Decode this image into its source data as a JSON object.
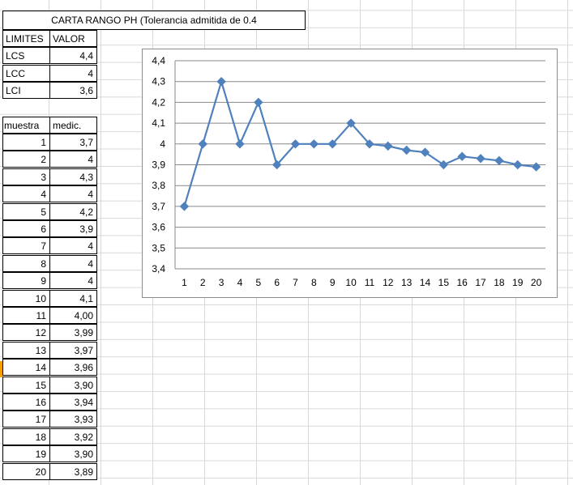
{
  "sheet": {
    "title": "CARTA RANGO PH (Tolerancia admitida de 0.4",
    "limits_header": [
      "LIMITES",
      "VALOR"
    ],
    "limits": [
      {
        "label": "LCS",
        "value": "4,4"
      },
      {
        "label": "LCC",
        "value": "4"
      },
      {
        "label": "LCI",
        "value": "3,6"
      }
    ],
    "data_header": [
      "muestra",
      "medic."
    ],
    "rows": [
      {
        "n": "1",
        "v": "3,7"
      },
      {
        "n": "2",
        "v": "4"
      },
      {
        "n": "3",
        "v": "4,3"
      },
      {
        "n": "4",
        "v": "4"
      },
      {
        "n": "5",
        "v": "4,2"
      },
      {
        "n": "6",
        "v": "3,9"
      },
      {
        "n": "7",
        "v": "4"
      },
      {
        "n": "8",
        "v": "4"
      },
      {
        "n": "9",
        "v": "4"
      },
      {
        "n": "10",
        "v": "4,1"
      },
      {
        "n": "11",
        "v": "4,00"
      },
      {
        "n": "12",
        "v": "3,99"
      },
      {
        "n": "13",
        "v": "3,97"
      },
      {
        "n": "14",
        "v": "3,96"
      },
      {
        "n": "15",
        "v": "3,90"
      },
      {
        "n": "16",
        "v": "3,94"
      },
      {
        "n": "17",
        "v": "3,93"
      },
      {
        "n": "18",
        "v": "3,92"
      },
      {
        "n": "19",
        "v": "3,90"
      },
      {
        "n": "20",
        "v": "3,89"
      }
    ]
  },
  "chart_data": {
    "type": "line",
    "x": [
      1,
      2,
      3,
      4,
      5,
      6,
      7,
      8,
      9,
      10,
      11,
      12,
      13,
      14,
      15,
      16,
      17,
      18,
      19,
      20
    ],
    "series": [
      {
        "values": [
          3.7,
          4,
          4.3,
          4,
          4.2,
          3.9,
          4,
          4,
          4,
          4.1,
          4.0,
          3.99,
          3.97,
          3.96,
          3.9,
          3.94,
          3.93,
          3.92,
          3.9,
          3.89
        ]
      }
    ],
    "ylim": [
      3.4,
      4.4
    ],
    "yticks": [
      "3,4",
      "3,5",
      "3,6",
      "3,7",
      "3,8",
      "3,9",
      "4",
      "4,1",
      "4,2",
      "4,3",
      "4,4"
    ],
    "xticks": [
      "1",
      "2",
      "3",
      "4",
      "5",
      "6",
      "7",
      "8",
      "9",
      "10",
      "11",
      "12",
      "13",
      "14",
      "15",
      "16",
      "17",
      "18",
      "19",
      "20"
    ],
    "grid": true,
    "legend": "none",
    "line_color": "#4f81bd"
  }
}
